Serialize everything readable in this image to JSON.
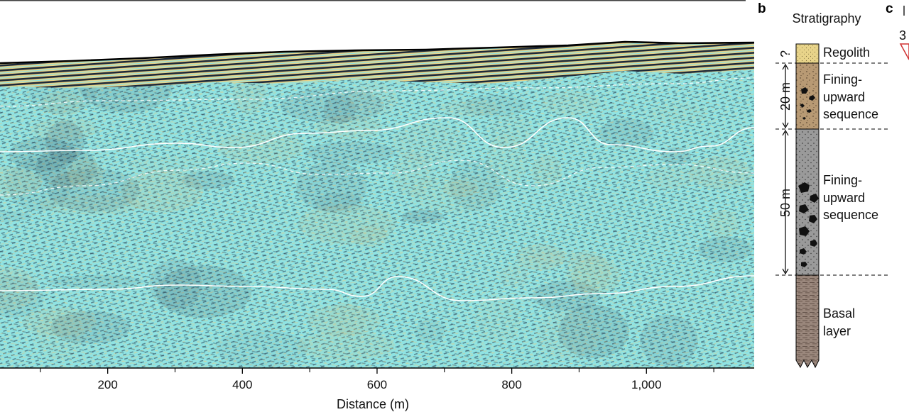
{
  "panels": {
    "b_letter": "b",
    "c_letter": "c",
    "c_partial_text": "3"
  },
  "radargram": {
    "colors": {
      "background": "#8fe3e3",
      "positive": "#e8d48a",
      "negative": "#1e2a3a",
      "interface": "#ffffff",
      "surface": "#000000"
    }
  },
  "chart_data": {
    "type": "heatmap",
    "title": "",
    "xlabel": "Distance (m)",
    "ylabel": "",
    "xlim": [
      0,
      1160
    ],
    "xticks": [
      {
        "value": 200,
        "label": "200"
      },
      {
        "value": 400,
        "label": "400"
      },
      {
        "value": 600,
        "label": "600"
      },
      {
        "value": 800,
        "label": "800"
      },
      {
        "value": 1000,
        "label": "1,000"
      }
    ],
    "minor_ticks": [
      100,
      300,
      500,
      700,
      900,
      1100
    ]
  },
  "stratigraphy": {
    "title": "Stratigraphy",
    "units": [
      {
        "name": "Regolith",
        "lines": [
          "Regolith"
        ],
        "thickness_label": "?",
        "color": "#e8d48a"
      },
      {
        "name": "Fining-upward sequence",
        "lines": [
          "Fining-",
          "upward",
          "sequence"
        ],
        "thickness_label": "20 m",
        "color": "#b89a74"
      },
      {
        "name": "Fining-upward sequence",
        "lines": [
          "Fining-",
          "upward",
          "sequence"
        ],
        "thickness_label": "50 m",
        "color": "#9a9a9a"
      },
      {
        "name": "Basal layer",
        "lines": [
          "Basal",
          "layer"
        ],
        "thickness_label": "",
        "color": "#9a877c"
      }
    ]
  }
}
